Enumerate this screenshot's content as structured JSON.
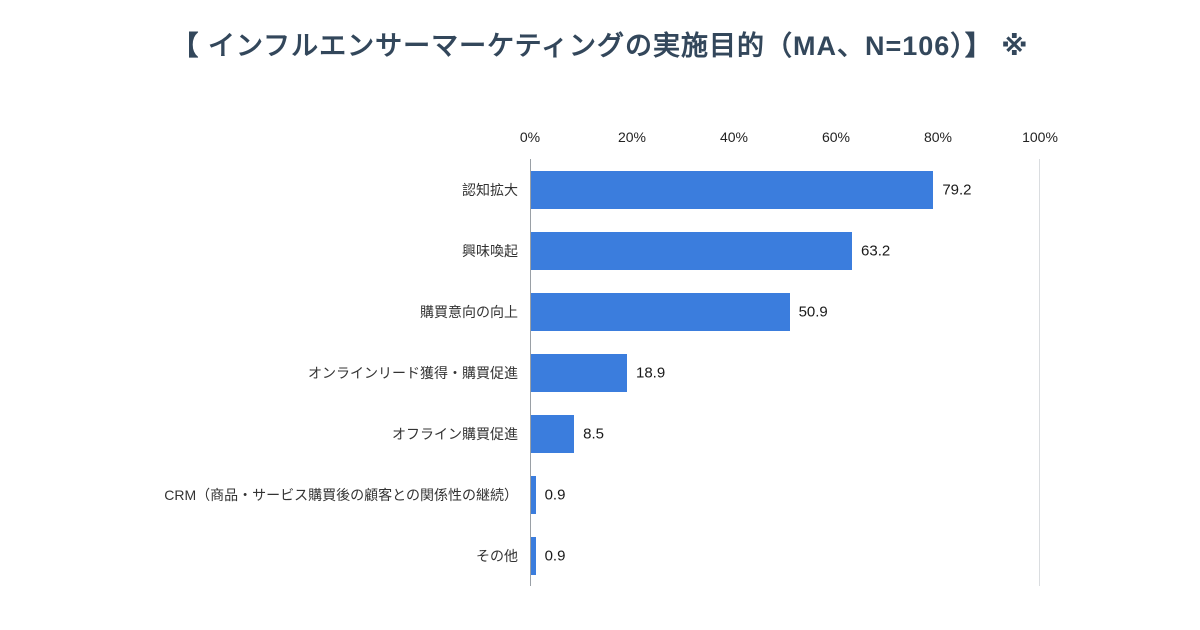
{
  "title": {
    "text": "【 インフルエンサーマーケティングの実施目的（MA、N=106）】 ※",
    "color": "#33475b"
  },
  "chart_data": {
    "type": "bar",
    "orientation": "horizontal",
    "title": "インフルエンサーマーケティングの実施目的（MA、N=106）",
    "categories": [
      "認知拡大",
      "興味喚起",
      "購買意向の向上",
      "オンラインリード獲得・購買促進",
      "オフライン購買促進",
      "CRM（商品・サービス購買後の顧客との関係性の継続）",
      "その他"
    ],
    "values": [
      79.2,
      63.2,
      50.9,
      18.9,
      8.5,
      0.9,
      0.9
    ],
    "value_labels": [
      "79.2",
      "63.2",
      "50.9",
      "18.9",
      "8.5",
      "0.9",
      "0.9"
    ],
    "x_ticks": [
      "0%",
      "20%",
      "40%",
      "60%",
      "80%",
      "100%"
    ],
    "xlim": [
      0,
      100
    ],
    "xlabel": "",
    "ylabel": "",
    "bar_color": "#3b7ddd",
    "grid": false,
    "legend": false
  }
}
